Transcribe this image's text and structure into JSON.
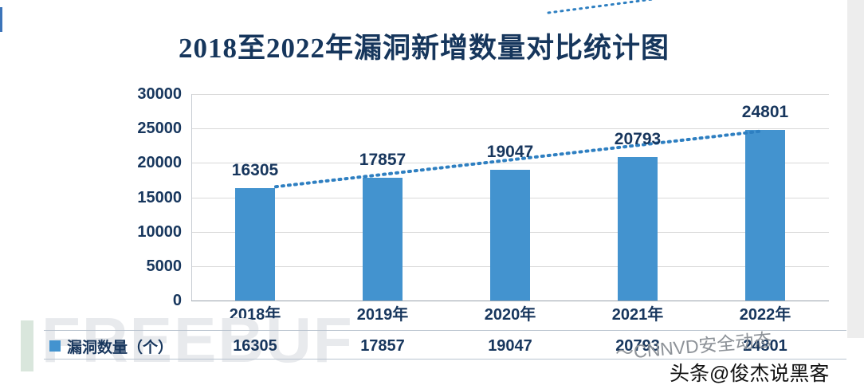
{
  "chart_data": {
    "type": "bar",
    "title": "2018至2022年漏洞新增数量对比统计图",
    "categories": [
      "2018年",
      "2019年",
      "2020年",
      "2021年",
      "2022年"
    ],
    "values": [
      16305,
      17857,
      19047,
      20793,
      24801
    ],
    "data_labels": [
      "16305",
      "17857",
      "19047",
      "20793",
      "24801"
    ],
    "xlabel": "",
    "ylabel": "",
    "ylim": [
      0,
      30000
    ],
    "yticks": [
      0,
      5000,
      10000,
      15000,
      20000,
      25000,
      30000
    ],
    "grid": true,
    "legend_position": "bottom-table",
    "bar_color": "#4393cf",
    "trendline": {
      "style": "dotted",
      "color": "#2e7fc1"
    }
  },
  "table": {
    "legend_label": "漏洞数量（个）",
    "values": [
      "16305",
      "17857",
      "19047",
      "20793",
      "24801"
    ]
  },
  "watermarks": {
    "freebuf": "FREEBUF",
    "cnnvd": "～CNNVD安全动态",
    "toutiao": "头条@俊杰说黑客"
  },
  "colors": {
    "title": "#16365c",
    "axis_text": "#17365d",
    "bar": "#4393cf",
    "gridline": "#d9d9d9",
    "trend": "#2e7fc1"
  }
}
